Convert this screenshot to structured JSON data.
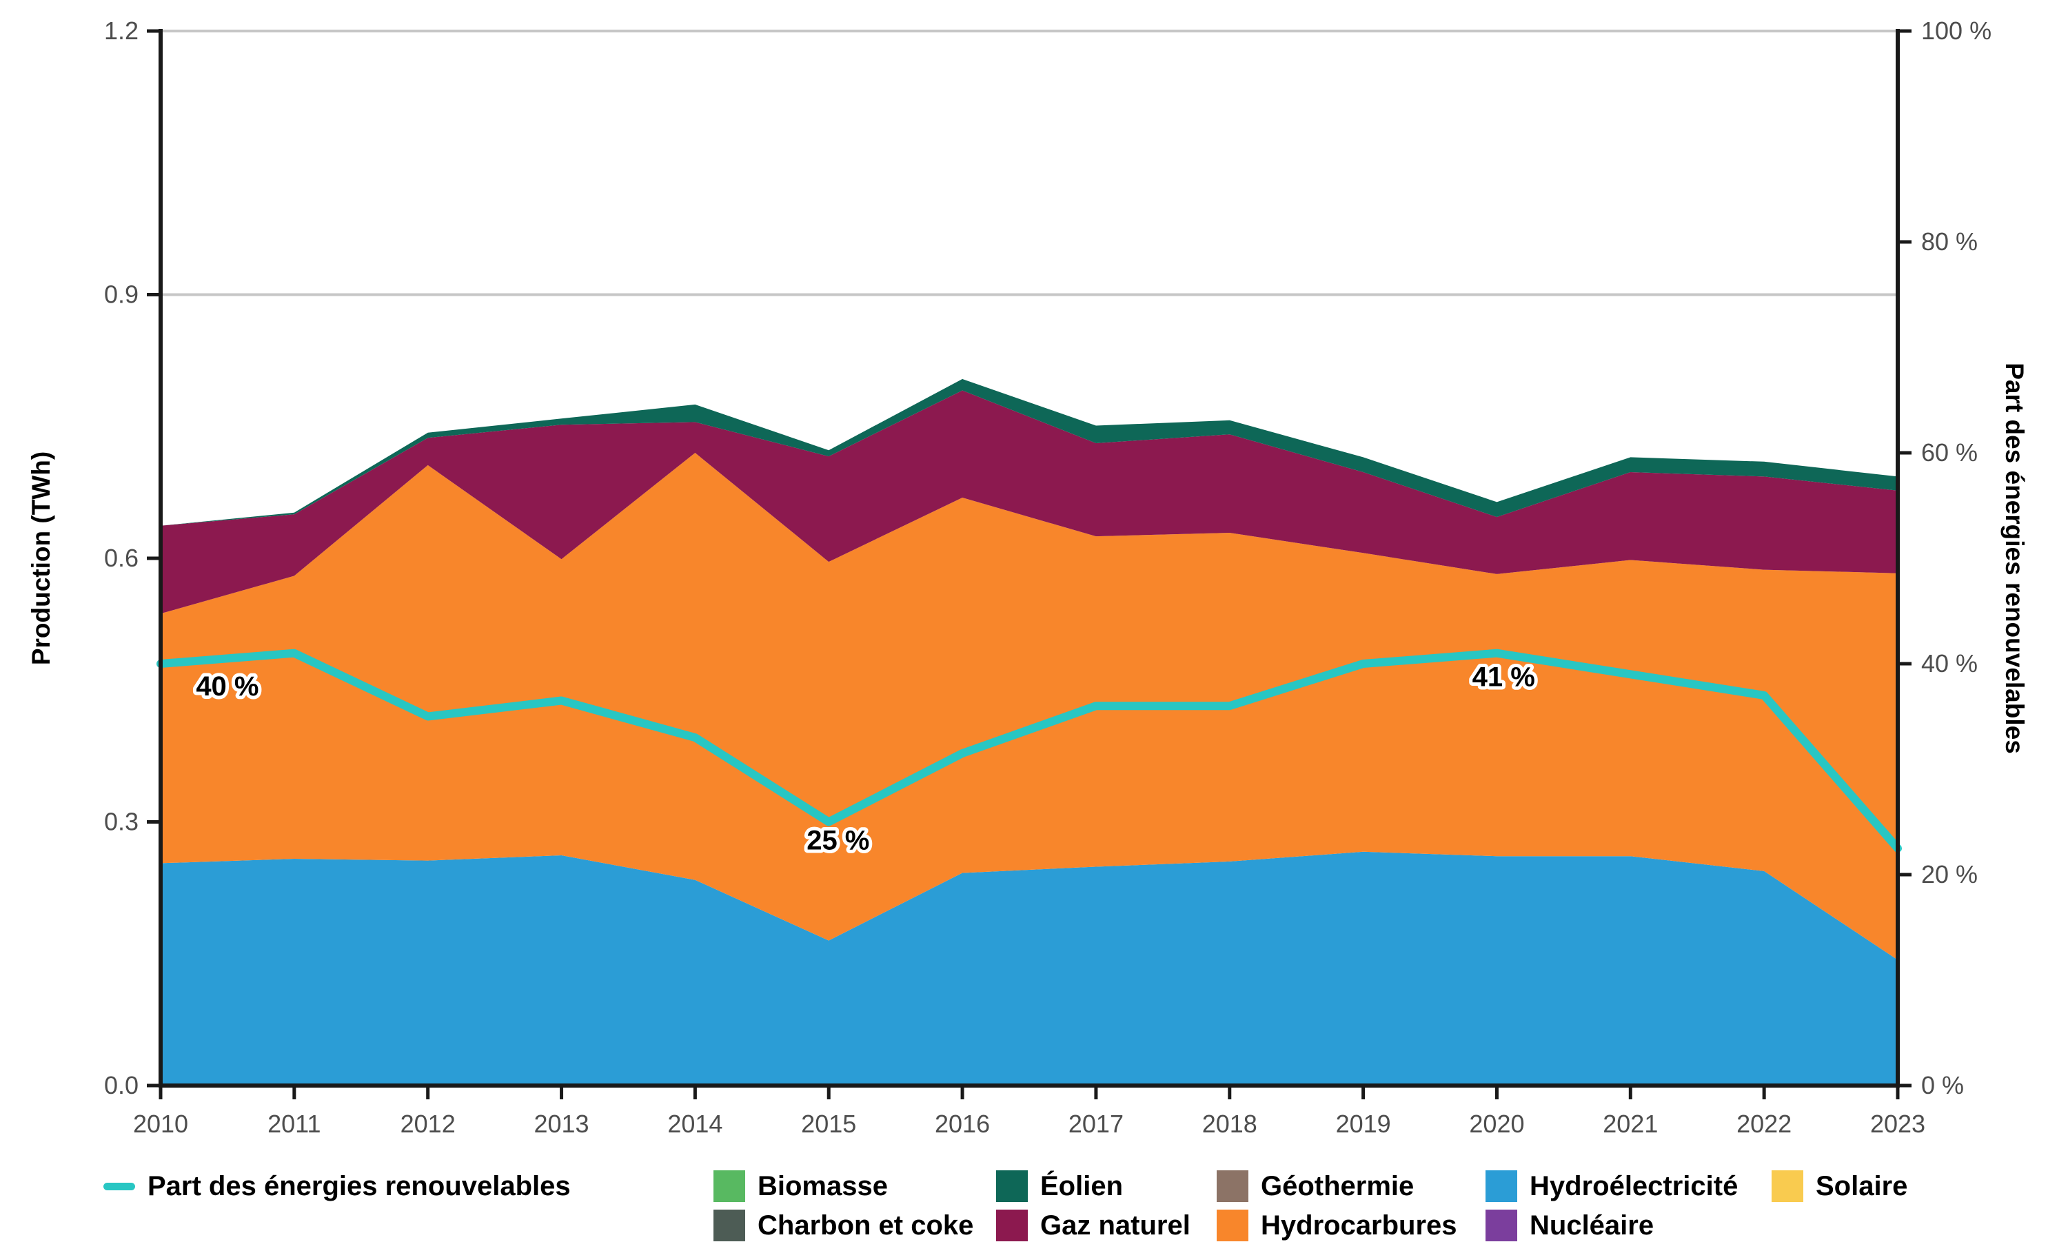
{
  "chart": {
    "left_axis": {
      "title": "Production (TWh)",
      "tick_labels": [
        "0.0",
        "0.3",
        "0.6",
        "0.9",
        "1.2"
      ],
      "tick_values": [
        0,
        0.3,
        0.6,
        0.9,
        1.2
      ],
      "max": 1.2
    },
    "right_axis": {
      "title": "Part des énergies renouvelables",
      "tick_labels": [
        "0 %",
        "20 %",
        "40 %",
        "60 %",
        "80 %",
        "100 %"
      ],
      "tick_values": [
        0,
        20,
        40,
        60,
        80,
        100
      ],
      "max": 100
    },
    "x_axis": {
      "tick_labels": [
        "2010",
        "2011",
        "2012",
        "2013",
        "2014",
        "2015",
        "2016",
        "2017",
        "2018",
        "2019",
        "2020",
        "2021",
        "2022",
        "2023"
      ]
    }
  },
  "chart_data": {
    "type": "area",
    "stacked": true,
    "x": [
      2010,
      2011,
      2012,
      2013,
      2014,
      2015,
      2016,
      2017,
      2018,
      2019,
      2020,
      2021,
      2022,
      2023
    ],
    "xlabel": "",
    "ylabel_left": "Production (TWh)",
    "ylabel_right": "Part des énergies renouvelables",
    "ylim_left": [
      0,
      1.2
    ],
    "ylim_right": [
      0,
      100
    ],
    "grid": "horizontal",
    "legend_position": "bottom",
    "series": [
      {
        "name": "Solaire",
        "color": "#F9CB4F",
        "values": [
          0,
          0,
          0,
          0,
          0,
          0,
          0,
          0,
          0,
          0,
          0,
          0,
          0,
          0
        ]
      },
      {
        "name": "Nucléaire",
        "color": "#7B3E9D",
        "values": [
          0,
          0,
          0,
          0,
          0,
          0,
          0,
          0,
          0,
          0,
          0,
          0,
          0,
          0
        ]
      },
      {
        "name": "Hydroélectricité",
        "color": "#2B9DD6",
        "values": [
          0.253,
          0.258,
          0.256,
          0.262,
          0.234,
          0.165,
          0.242,
          0.249,
          0.255,
          0.266,
          0.261,
          0.261,
          0.244,
          0.143
        ]
      },
      {
        "name": "Hydrocarbures",
        "color": "#F8862B",
        "values": [
          0.284,
          0.322,
          0.45,
          0.337,
          0.486,
          0.431,
          0.427,
          0.376,
          0.374,
          0.34,
          0.321,
          0.337,
          0.343,
          0.44
        ]
      },
      {
        "name": "Géothermie",
        "color": "#8C7366",
        "values": [
          0,
          0,
          0,
          0,
          0,
          0,
          0,
          0,
          0,
          0,
          0,
          0,
          0,
          0
        ]
      },
      {
        "name": "Gaz naturel",
        "color": "#8C194F",
        "values": [
          0.1,
          0.07,
          0.031,
          0.153,
          0.035,
          0.12,
          0.122,
          0.106,
          0.112,
          0.092,
          0.065,
          0.1,
          0.106,
          0.094
        ]
      },
      {
        "name": "Éolien",
        "color": "#0E6757",
        "values": [
          0.0,
          0.002,
          0.006,
          0.007,
          0.02,
          0.007,
          0.013,
          0.02,
          0.016,
          0.017,
          0.017,
          0.017,
          0.017,
          0.016
        ]
      },
      {
        "name": "Charbon et coke",
        "color": "#4D5C55",
        "values": [
          0,
          0,
          0,
          0,
          0,
          0,
          0,
          0,
          0,
          0,
          0,
          0,
          0,
          0
        ]
      },
      {
        "name": "Biomasse",
        "color": "#58B961",
        "values": [
          0,
          0,
          0,
          0,
          0,
          0,
          0,
          0,
          0,
          0,
          0,
          0,
          0,
          0
        ]
      }
    ],
    "line": {
      "name": "Part des énergies renouvelables",
      "color": "#28C6C3",
      "axis": "right",
      "unit": "%",
      "values": [
        40,
        41,
        35,
        36.5,
        33,
        25,
        31.5,
        36,
        36,
        40,
        41,
        39,
        37,
        22.5
      ]
    },
    "annotations": [
      {
        "text": "40 %",
        "x": 2010.5,
        "pct": 37.9
      },
      {
        "text": "25 %",
        "x": 2015.07,
        "pct": 23.3
      },
      {
        "text": "41 %",
        "x": 2020.05,
        "pct": 38.8
      }
    ]
  },
  "legend": {
    "line_item": "Part des énergies renouvelables",
    "series_order": [
      "Biomasse",
      "Charbon et coke",
      "Éolien",
      "Gaz naturel",
      "Géothermie",
      "Hydrocarbures",
      "Hydroélectricité",
      "Nucléaire",
      "Solaire"
    ]
  },
  "colors": {
    "background": "#FFFFFF",
    "grid": "#C6C6C6",
    "axis": "#191919",
    "tick_text": "#4D4D4D",
    "annotation_text": "#000000",
    "annotation_halo": "#FFFFFF"
  }
}
